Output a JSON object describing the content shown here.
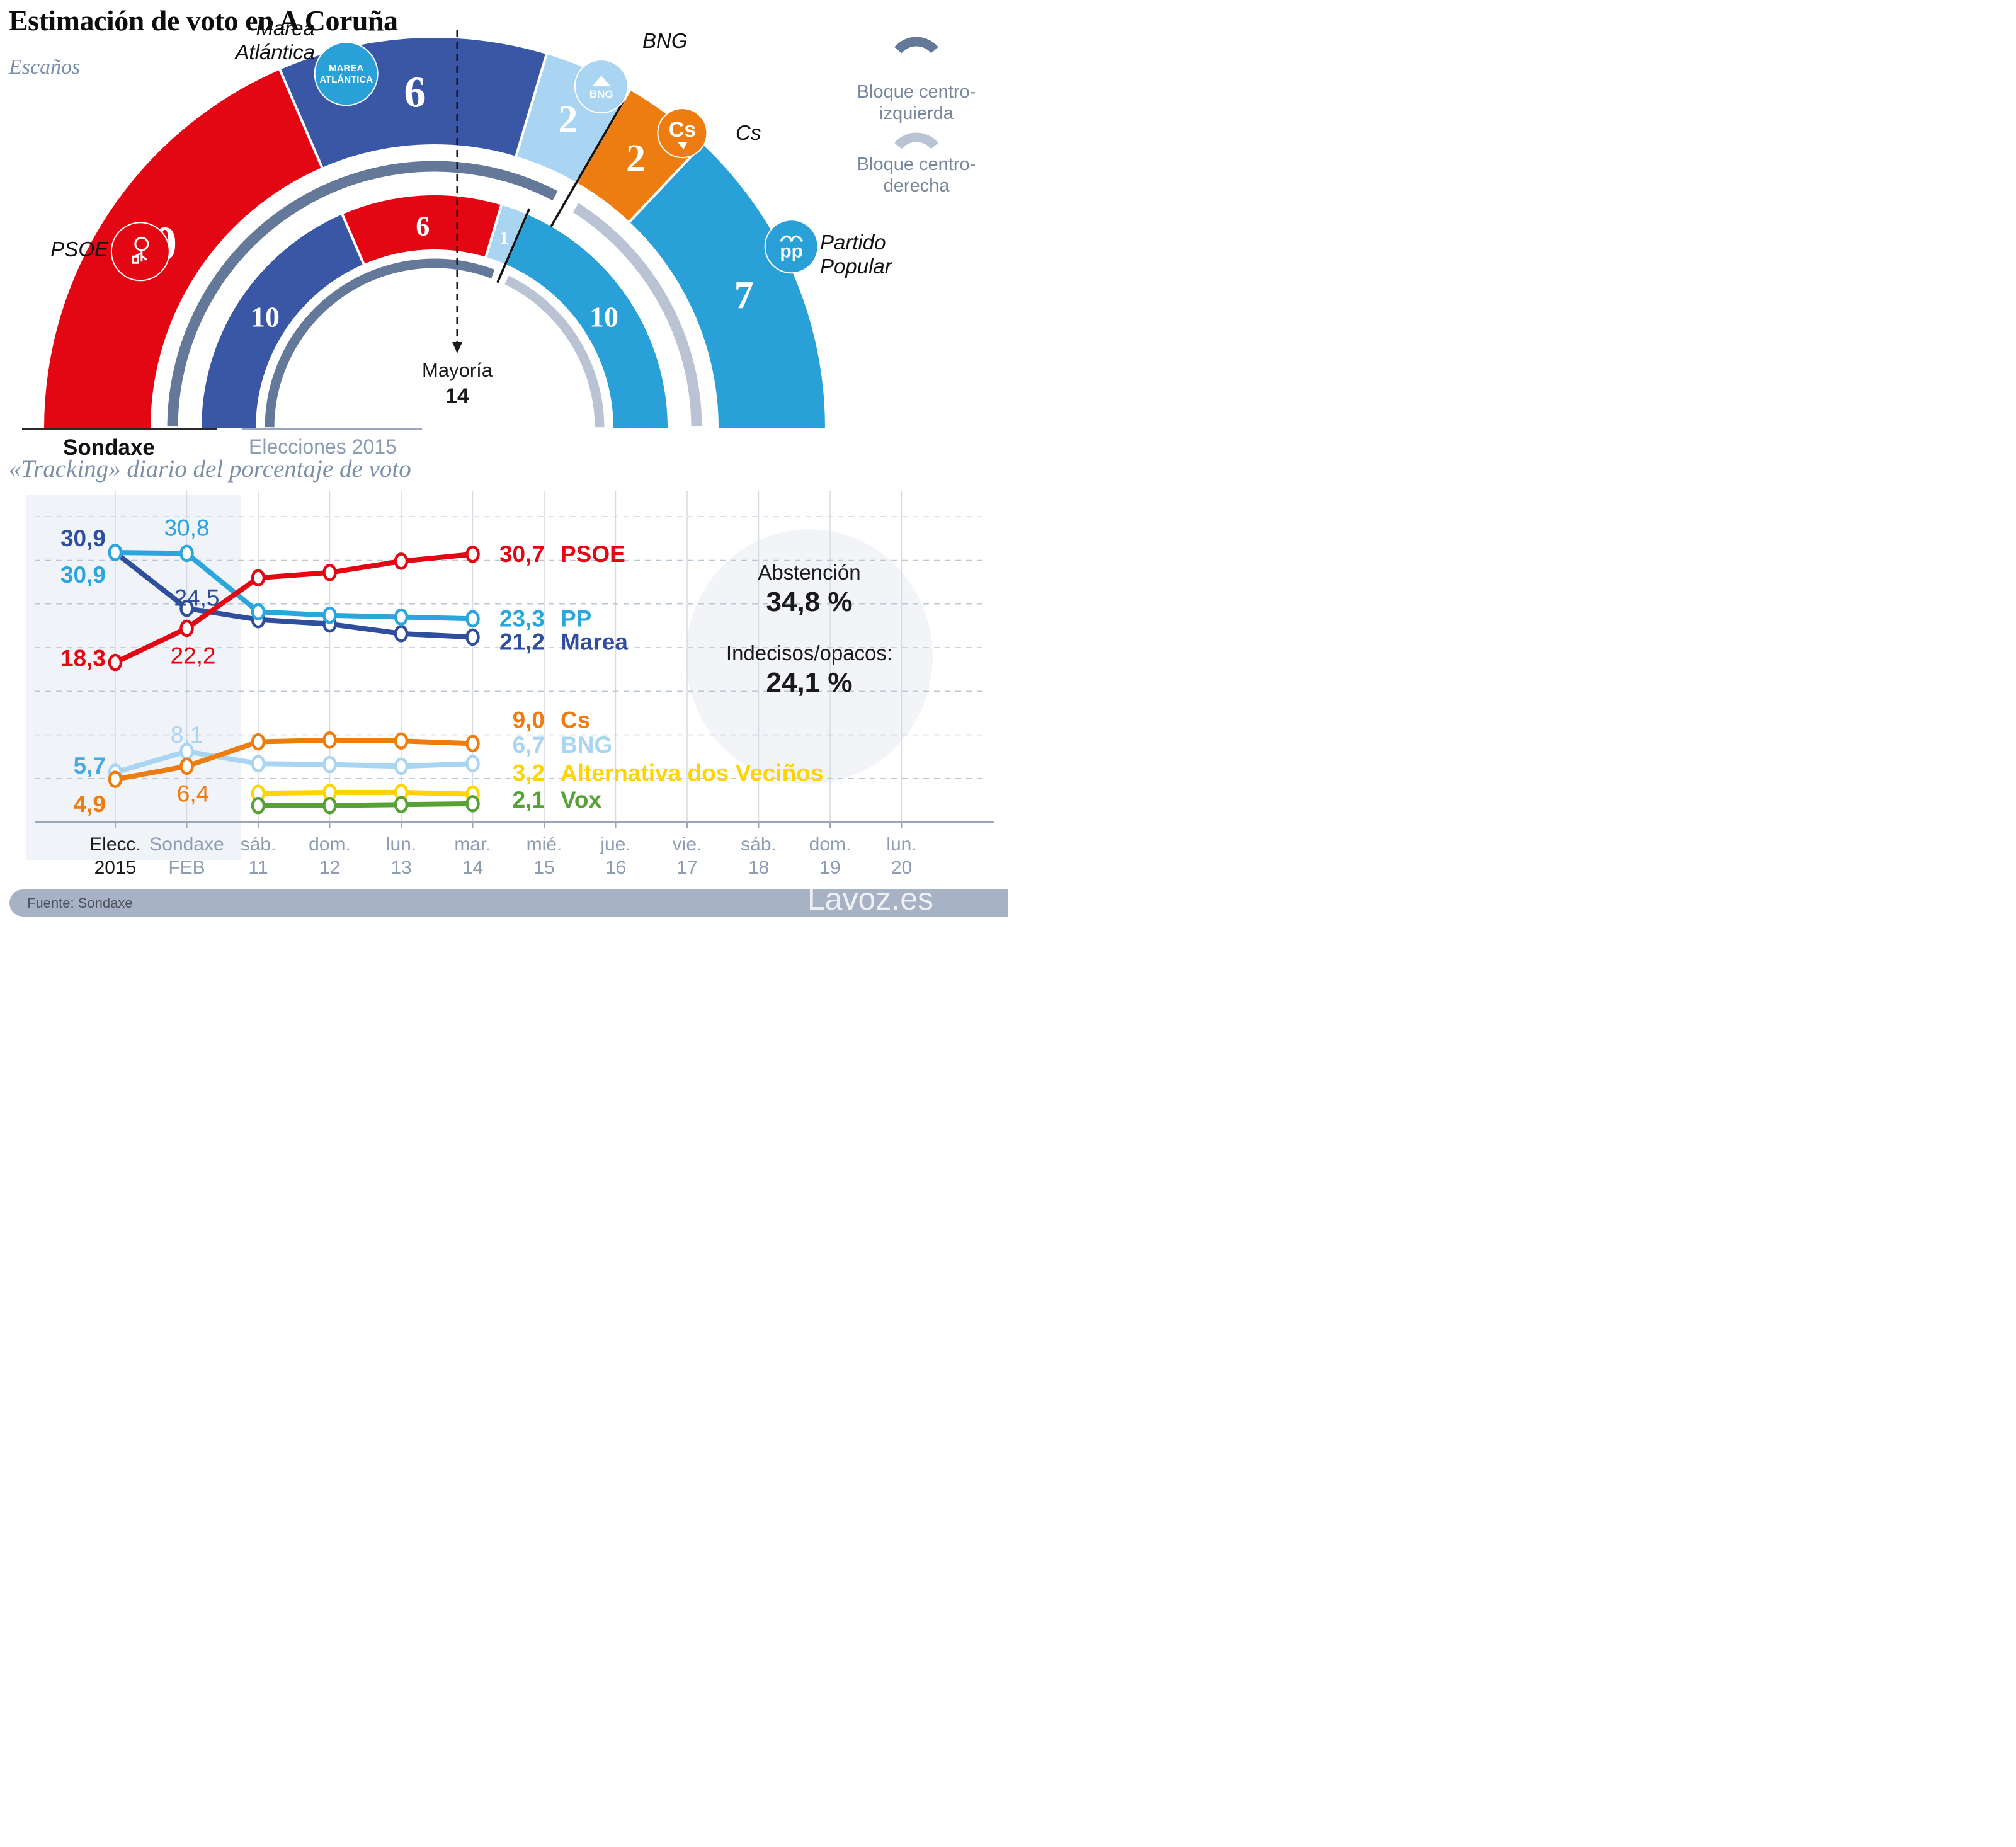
{
  "title": "Estimación de voto en A Coruña",
  "footer": {
    "source": "Fuente: Sondaxe",
    "watermark": "Lavoz.es"
  },
  "chart_data": [
    {
      "type": "pie",
      "variant": "half-donut-seats",
      "title": "Escaños",
      "total_seats": 27,
      "majority": {
        "label": "Mayoría",
        "value": "14",
        "seats_from_left": 14
      },
      "legend": [
        {
          "id": "centro-izquierda",
          "lines": [
            "Bloque centro-",
            "izquierda"
          ],
          "color": "#64789a"
        },
        {
          "id": "centro-derecha",
          "lines": [
            "Bloque centro-",
            "derecha"
          ],
          "color": "#b9c3d3"
        }
      ],
      "rings": [
        {
          "id": "sondaxe",
          "axis_label": "Sondaxe",
          "segments": [
            {
              "party": "PSOE",
              "seats": 10,
              "color": "#e30613",
              "bloc": "centro-izquierda",
              "number_size": 76
            },
            {
              "party": "Marea Atlántica",
              "seats": 6,
              "color": "#3a57a5",
              "bloc": "centro-izquierda",
              "number_size": 70
            },
            {
              "party": "BNG",
              "seats": 2,
              "color": "#a9d5f2",
              "bloc": "centro-izquierda",
              "number_size": 62
            },
            {
              "party": "Cs",
              "seats": 2,
              "color": "#ee7d11",
              "bloc": "centro-derecha",
              "number_size": 62
            },
            {
              "party": "Partido Popular",
              "seats": 7,
              "color": "#29a0d8",
              "bloc": "centro-derecha",
              "number_size": 62
            }
          ]
        },
        {
          "id": "elecciones-2015",
          "axis_label": "Elecciones 2015",
          "segments": [
            {
              "party": "Marea Atlántica",
              "seats": 10,
              "color": "#3a57a5",
              "bloc": "centro-izquierda",
              "number_size": 46
            },
            {
              "party": "PSOE",
              "seats": 6,
              "color": "#e30613",
              "bloc": "centro-izquierda",
              "number_size": 44
            },
            {
              "party": "BNG",
              "seats": 1,
              "color": "#a9d5f2",
              "bloc": "centro-izquierda",
              "number_size": 30
            },
            {
              "party": "Partido Popular",
              "seats": 10,
              "color": "#29a0d8",
              "bloc": "centro-derecha",
              "number_size": 46
            }
          ]
        }
      ],
      "party_labels": [
        {
          "id": "psoe",
          "lines": [
            "PSOE"
          ]
        },
        {
          "id": "marea",
          "lines": [
            "Marea",
            "Atlántica"
          ]
        },
        {
          "id": "bng",
          "lines": [
            "BNG"
          ]
        },
        {
          "id": "cs",
          "lines": [
            "Cs"
          ]
        },
        {
          "id": "pp",
          "lines": [
            "Partido",
            "Popular"
          ]
        }
      ],
      "badges": [
        {
          "id": "psoe",
          "bg": "#e30613",
          "logo": "psoe-rose",
          "text_lines": []
        },
        {
          "id": "marea",
          "bg": "#29a0d8",
          "logo": "marea-text",
          "text_lines": [
            "MAREA",
            "ATLÁNTICA"
          ]
        },
        {
          "id": "bng",
          "bg": "#a9d5f2",
          "logo": "bng-mountain",
          "text_lines": [
            "BNG"
          ]
        },
        {
          "id": "cs",
          "bg": "#ee7d11",
          "logo": "cs-text",
          "text_lines": [
            "Cs"
          ]
        },
        {
          "id": "pp",
          "bg": "#29a0d8",
          "logo": "pp-gull",
          "text_lines": [
            "pp"
          ]
        }
      ]
    },
    {
      "type": "line",
      "title": "«Tracking» diario del porcentaje de voto",
      "ylim": [
        0,
        36
      ],
      "gridlines": [
        5,
        10,
        15,
        20,
        25,
        30,
        35
      ],
      "grid": true,
      "legend_position": "end-of-line",
      "categories": [
        [
          "Elecc.",
          "2015"
        ],
        [
          "Sondaxe",
          "FEB"
        ],
        [
          "sáb.",
          "11"
        ],
        [
          "dom.",
          "12"
        ],
        [
          "lun.",
          "13"
        ],
        [
          "mar.",
          "14"
        ],
        [
          "mié.",
          "15"
        ],
        [
          "jue.",
          "16"
        ],
        [
          "vie.",
          "17"
        ],
        [
          "sáb.",
          "18"
        ],
        [
          "dom.",
          "19"
        ],
        [
          "lun.",
          "20"
        ]
      ],
      "series": [
        {
          "name": "BNG",
          "color": "#a9d5f2",
          "values": [
            5.7,
            8.1,
            6.7,
            6.6,
            6.4,
            6.7
          ],
          "point_labels": [
            {
              "i": 0,
              "text": "5,7",
              "pos": "left",
              "bold": true,
              "color": "#45aade"
            },
            {
              "i": 1,
              "text": "8,1",
              "pos": "above",
              "bold": false
            }
          ],
          "end_label": {
            "value": "6,7",
            "name": "BNG"
          }
        },
        {
          "name": "Cs",
          "color": "#ee7d11",
          "values": [
            4.9,
            6.4,
            9.2,
            9.4,
            9.3,
            9.0
          ],
          "point_labels": [
            {
              "i": 0,
              "text": "4,9",
              "pos": "left",
              "bold": true
            },
            {
              "i": 1,
              "text": "6,4",
              "pos": "below",
              "bold": false
            }
          ],
          "end_label": {
            "value": "9,0",
            "name": "Cs"
          }
        },
        {
          "name": "Alternativa dos Veciños",
          "color": "#ffd400",
          "values": [
            null,
            null,
            3.3,
            3.4,
            3.4,
            3.2
          ],
          "point_labels": [],
          "end_label": {
            "value": "3,2",
            "name": "Alternativa dos Veciños"
          }
        },
        {
          "name": "Vox",
          "color": "#57a237",
          "values": [
            null,
            null,
            1.9,
            1.9,
            2.0,
            2.1
          ],
          "point_labels": [],
          "end_label": {
            "value": "2,1",
            "name": "Vox"
          }
        },
        {
          "name": "Marea",
          "color": "#2f4f9d",
          "values": [
            30.9,
            24.5,
            23.2,
            22.7,
            21.6,
            21.2
          ],
          "point_labels": [
            {
              "i": 0,
              "text": "30,9",
              "pos": "left",
              "bold": true
            },
            {
              "i": 1,
              "text": "24,5",
              "pos": "above",
              "bold": false
            }
          ],
          "end_label": {
            "value": "21,2",
            "name": "Marea"
          }
        },
        {
          "name": "PP",
          "color": "#2aa5de",
          "values": [
            30.9,
            30.8,
            24.1,
            23.7,
            23.5,
            23.3
          ],
          "point_labels": [
            {
              "i": 0,
              "text": "30,9",
              "pos": "left-below",
              "bold": true
            },
            {
              "i": 1,
              "text": "30,8",
              "pos": "above",
              "bold": false
            }
          ],
          "end_label": {
            "value": "23,3",
            "name": "PP"
          }
        },
        {
          "name": "PSOE",
          "color": "#e30613",
          "values": [
            18.3,
            22.2,
            28.0,
            28.6,
            29.9,
            30.7
          ],
          "point_labels": [
            {
              "i": 0,
              "text": "18,3",
              "pos": "left",
              "bold": true
            },
            {
              "i": 1,
              "text": "22,2",
              "pos": "below",
              "bold": false
            }
          ],
          "end_label": {
            "value": "30,7",
            "name": "PSOE"
          }
        }
      ],
      "annotation": {
        "lines": [
          {
            "text": "Abstención",
            "bold": false
          },
          {
            "text": "34,8 %",
            "bold": true
          },
          {
            "text": "Indecisos/opacos:",
            "bold": false
          },
          {
            "text": "24,1 %",
            "bold": true
          }
        ]
      }
    }
  ]
}
